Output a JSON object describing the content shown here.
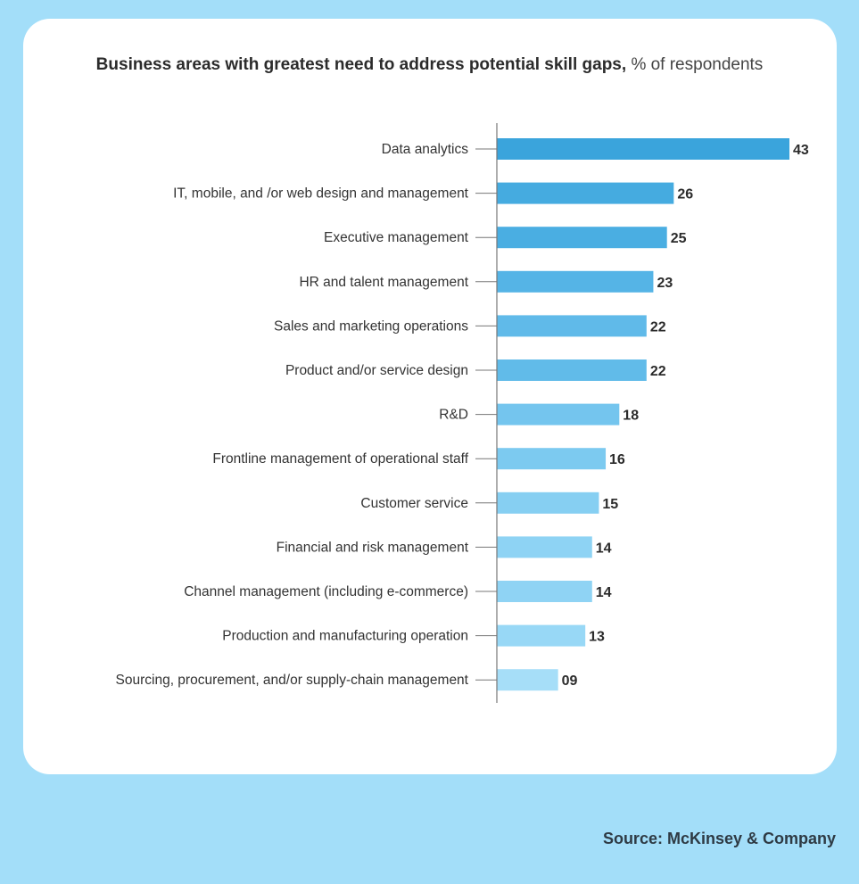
{
  "chart_data": {
    "type": "bar",
    "orientation": "horizontal",
    "title": "Business areas with greatest need to address potential skill gaps,",
    "subtitle": "% of respondents",
    "categories": [
      "Data analytics",
      "IT, mobile, and /or web design and management",
      "Executive management",
      "HR and talent management",
      "Sales and marketing operations",
      "Product and/or service design",
      "R&D",
      "Frontline management of operational staff",
      "Customer service",
      "Financial and risk management",
      "Channel management (including e-commerce)",
      "Production and manufacturing operation",
      "Sourcing, procurement, and/or supply-chain management"
    ],
    "values": [
      43,
      26,
      25,
      23,
      22,
      22,
      18,
      16,
      15,
      14,
      14,
      13,
      9
    ],
    "value_labels": [
      "43",
      "26",
      "25",
      "23",
      "22",
      "22",
      "18",
      "16",
      "15",
      "14",
      "14",
      "13",
      "09"
    ],
    "bar_colors": [
      "#3aa4dc",
      "#45abe0",
      "#4aaee2",
      "#55b4e6",
      "#60bae9",
      "#61bbe9",
      "#74c5ee",
      "#7ccaf0",
      "#86cff2",
      "#8ed3f4",
      "#8fd3f4",
      "#98d8f6",
      "#a6def8"
    ],
    "xlim": [
      0,
      43
    ],
    "grid": false,
    "legend": "none"
  },
  "source": "Source: McKinsey & Company",
  "colors": {
    "background": "#a3def9",
    "card": "#ffffff",
    "axis": "#777777"
  }
}
